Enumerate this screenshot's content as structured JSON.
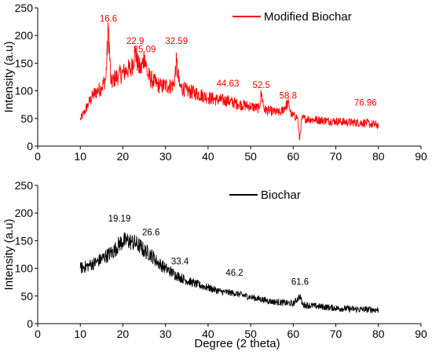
{
  "chart_data": [
    {
      "type": "line",
      "legend": {
        "label": "Modified Biochar",
        "color": "#ff0000",
        "placement": "top-right"
      },
      "series": [
        {
          "name": "Modified Biochar",
          "color": "#ff0000",
          "x_range": [
            10,
            80
          ],
          "points": [
            [
              10,
              48
            ],
            [
              11,
              62
            ],
            [
              12,
              78
            ],
            [
              13,
              92
            ],
            [
              14,
              100
            ],
            [
              15,
              106
            ],
            [
              16,
              122
            ],
            [
              16.6,
              215
            ],
            [
              17.2,
              112
            ],
            [
              18,
              122
            ],
            [
              19,
              128
            ],
            [
              20,
              132
            ],
            [
              21,
              138
            ],
            [
              22,
              140
            ],
            [
              22.9,
              172
            ],
            [
              23.6,
              145
            ],
            [
              24.3,
              138
            ],
            [
              25.09,
              165
            ],
            [
              25.8,
              128
            ],
            [
              27,
              118
            ],
            [
              28,
              112
            ],
            [
              29,
              108
            ],
            [
              30,
              110
            ],
            [
              31,
              108
            ],
            [
              32,
              112
            ],
            [
              32.59,
              152
            ],
            [
              33.3,
              108
            ],
            [
              35,
              100
            ],
            [
              37,
              96
            ],
            [
              40,
              88
            ],
            [
              42,
              84
            ],
            [
              44.63,
              82
            ],
            [
              47,
              76
            ],
            [
              50,
              72
            ],
            [
              52,
              68
            ],
            [
              52.5,
              96
            ],
            [
              53.2,
              66
            ],
            [
              55,
              63
            ],
            [
              57,
              60
            ],
            [
              58.8,
              78
            ],
            [
              59.6,
              56
            ],
            [
              61,
              52
            ],
            [
              61.5,
              12
            ],
            [
              62,
              50
            ],
            [
              65,
              48
            ],
            [
              68,
              46
            ],
            [
              70,
              45
            ],
            [
              73,
              43
            ],
            [
              76.96,
              42
            ],
            [
              78,
              40
            ],
            [
              80,
              38
            ]
          ]
        }
      ],
      "annotations": [
        {
          "x": 16.6,
          "y": 225,
          "text": "16.6"
        },
        {
          "x": 22.9,
          "y": 185,
          "text": "22.9"
        },
        {
          "x": 25.09,
          "y": 170,
          "text": "25.09"
        },
        {
          "x": 32.59,
          "y": 185,
          "text": "32.59"
        },
        {
          "x": 44.63,
          "y": 108,
          "text": "44.63"
        },
        {
          "x": 52.5,
          "y": 105,
          "text": "52.5"
        },
        {
          "x": 58.8,
          "y": 86,
          "text": "58.8"
        },
        {
          "x": 76.96,
          "y": 73,
          "text": "76.96"
        }
      ],
      "xlim": [
        0,
        90
      ],
      "ylim": [
        0,
        250
      ],
      "xticks": [
        "0",
        "10",
        "20",
        "30",
        "40",
        "50",
        "60",
        "70",
        "80",
        "90"
      ],
      "yticks": [
        "0",
        "50",
        "100",
        "150",
        "200",
        "250"
      ],
      "ylabel": "Intensity (a.u)",
      "xlabel": "",
      "grid": false
    },
    {
      "type": "line",
      "legend": {
        "label": "Biochar",
        "color": "#000000",
        "placement": "top-right"
      },
      "series": [
        {
          "name": "Biochar",
          "color": "#000000",
          "x_range": [
            10,
            80
          ],
          "points": [
            [
              10,
              100
            ],
            [
              12,
              105
            ],
            [
              14,
              112
            ],
            [
              16,
              122
            ],
            [
              18,
              132
            ],
            [
              19.19,
              145
            ],
            [
              20,
              148
            ],
            [
              21,
              150
            ],
            [
              22,
              148
            ],
            [
              23,
              145
            ],
            [
              24,
              140
            ],
            [
              25,
              132
            ],
            [
              26.6,
              125
            ],
            [
              28,
              112
            ],
            [
              30,
              100
            ],
            [
              32,
              90
            ],
            [
              33.4,
              84
            ],
            [
              35,
              78
            ],
            [
              37,
              72
            ],
            [
              40,
              65
            ],
            [
              43,
              58
            ],
            [
              46.2,
              55
            ],
            [
              50,
              48
            ],
            [
              55,
              40
            ],
            [
              60,
              36
            ],
            [
              61.6,
              50
            ],
            [
              62.2,
              34
            ],
            [
              65,
              32
            ],
            [
              70,
              28
            ],
            [
              75,
              26
            ],
            [
              80,
              25
            ]
          ]
        }
      ],
      "annotations": [
        {
          "x": 19.19,
          "y": 185,
          "text": "19.19"
        },
        {
          "x": 26.6,
          "y": 160,
          "text": "26.6"
        },
        {
          "x": 33.4,
          "y": 107,
          "text": "33.4"
        },
        {
          "x": 46.2,
          "y": 87,
          "text": "46.2"
        },
        {
          "x": 61.6,
          "y": 70,
          "text": "61.6"
        }
      ],
      "xlim": [
        0,
        90
      ],
      "ylim": [
        0,
        250
      ],
      "xticks": [
        "0",
        "10",
        "20",
        "30",
        "40",
        "50",
        "60",
        "70",
        "80",
        "90"
      ],
      "yticks": [
        "0",
        "50",
        "100",
        "150",
        "200",
        "250"
      ],
      "ylabel": "Intensity (a.u)",
      "xlabel": "Degree (2 theta)",
      "grid": false
    }
  ]
}
